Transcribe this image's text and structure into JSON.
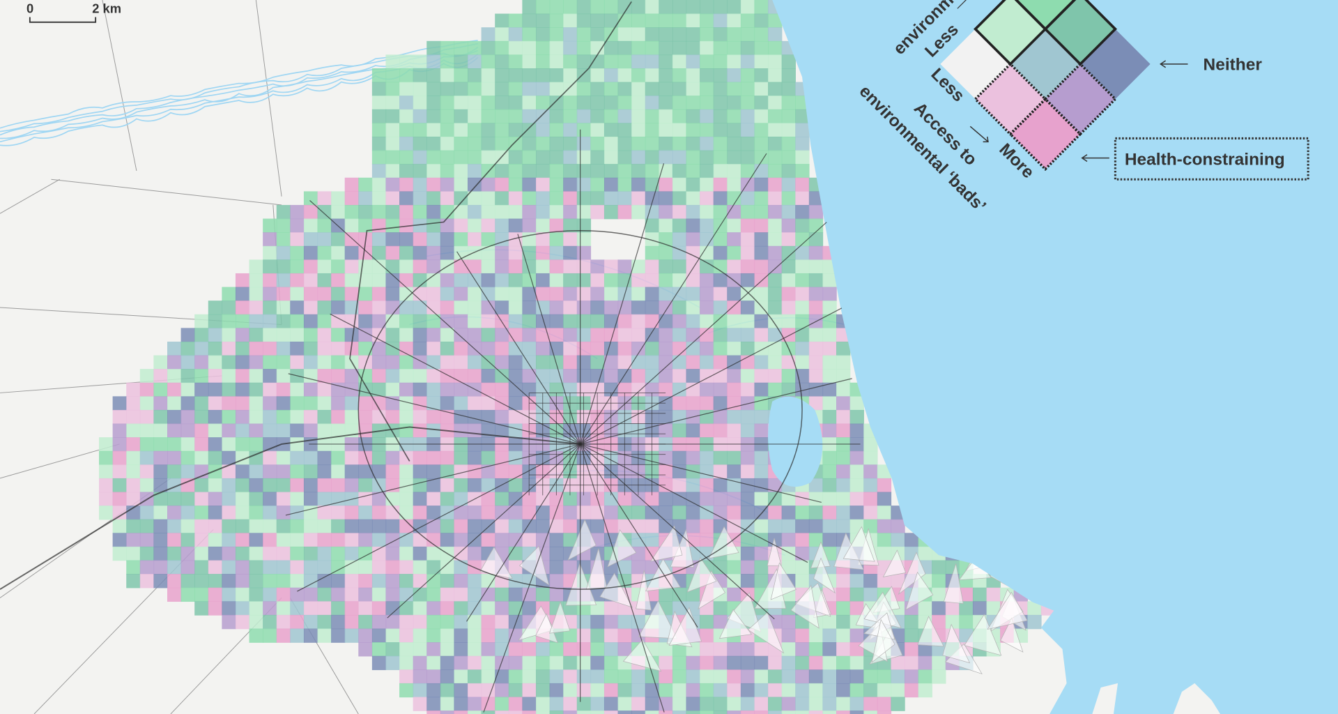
{
  "scale_bar": {
    "start": "0",
    "end": "2 km"
  },
  "legend": {
    "goods_axis_label": "environm",
    "goods_less": "Less",
    "bads_less": "Less",
    "bads_more": "More",
    "bads_axis_label_1": "Access to",
    "bads_axis_label_2": "environmental ‘bads’",
    "neither_label": "Neither",
    "health_constraining_label": "Health-constraining",
    "cells": [
      {
        "bads": 0,
        "goods": 0,
        "color": "#f2f2f2"
      },
      {
        "bads": 1,
        "goods": 0,
        "color": "#ebc1de"
      },
      {
        "bads": 2,
        "goods": 0,
        "color": "#e7a2cd"
      },
      {
        "bads": 0,
        "goods": 1,
        "color": "#c1ecd0"
      },
      {
        "bads": 1,
        "goods": 1,
        "color": "#a0c6d1"
      },
      {
        "bads": 2,
        "goods": 1,
        "color": "#b69dcf"
      },
      {
        "bads": 0,
        "goods": 2,
        "color": "#8edcaf"
      },
      {
        "bads": 1,
        "goods": 2,
        "color": "#7fc5ab"
      },
      {
        "bads": 2,
        "goods": 2,
        "color": "#7b8db6"
      }
    ]
  },
  "colors": {
    "sea": "#a6dcf5",
    "land": "#f3f3f1",
    "road": "#2b2b2b",
    "river": "#9fd6f3"
  }
}
